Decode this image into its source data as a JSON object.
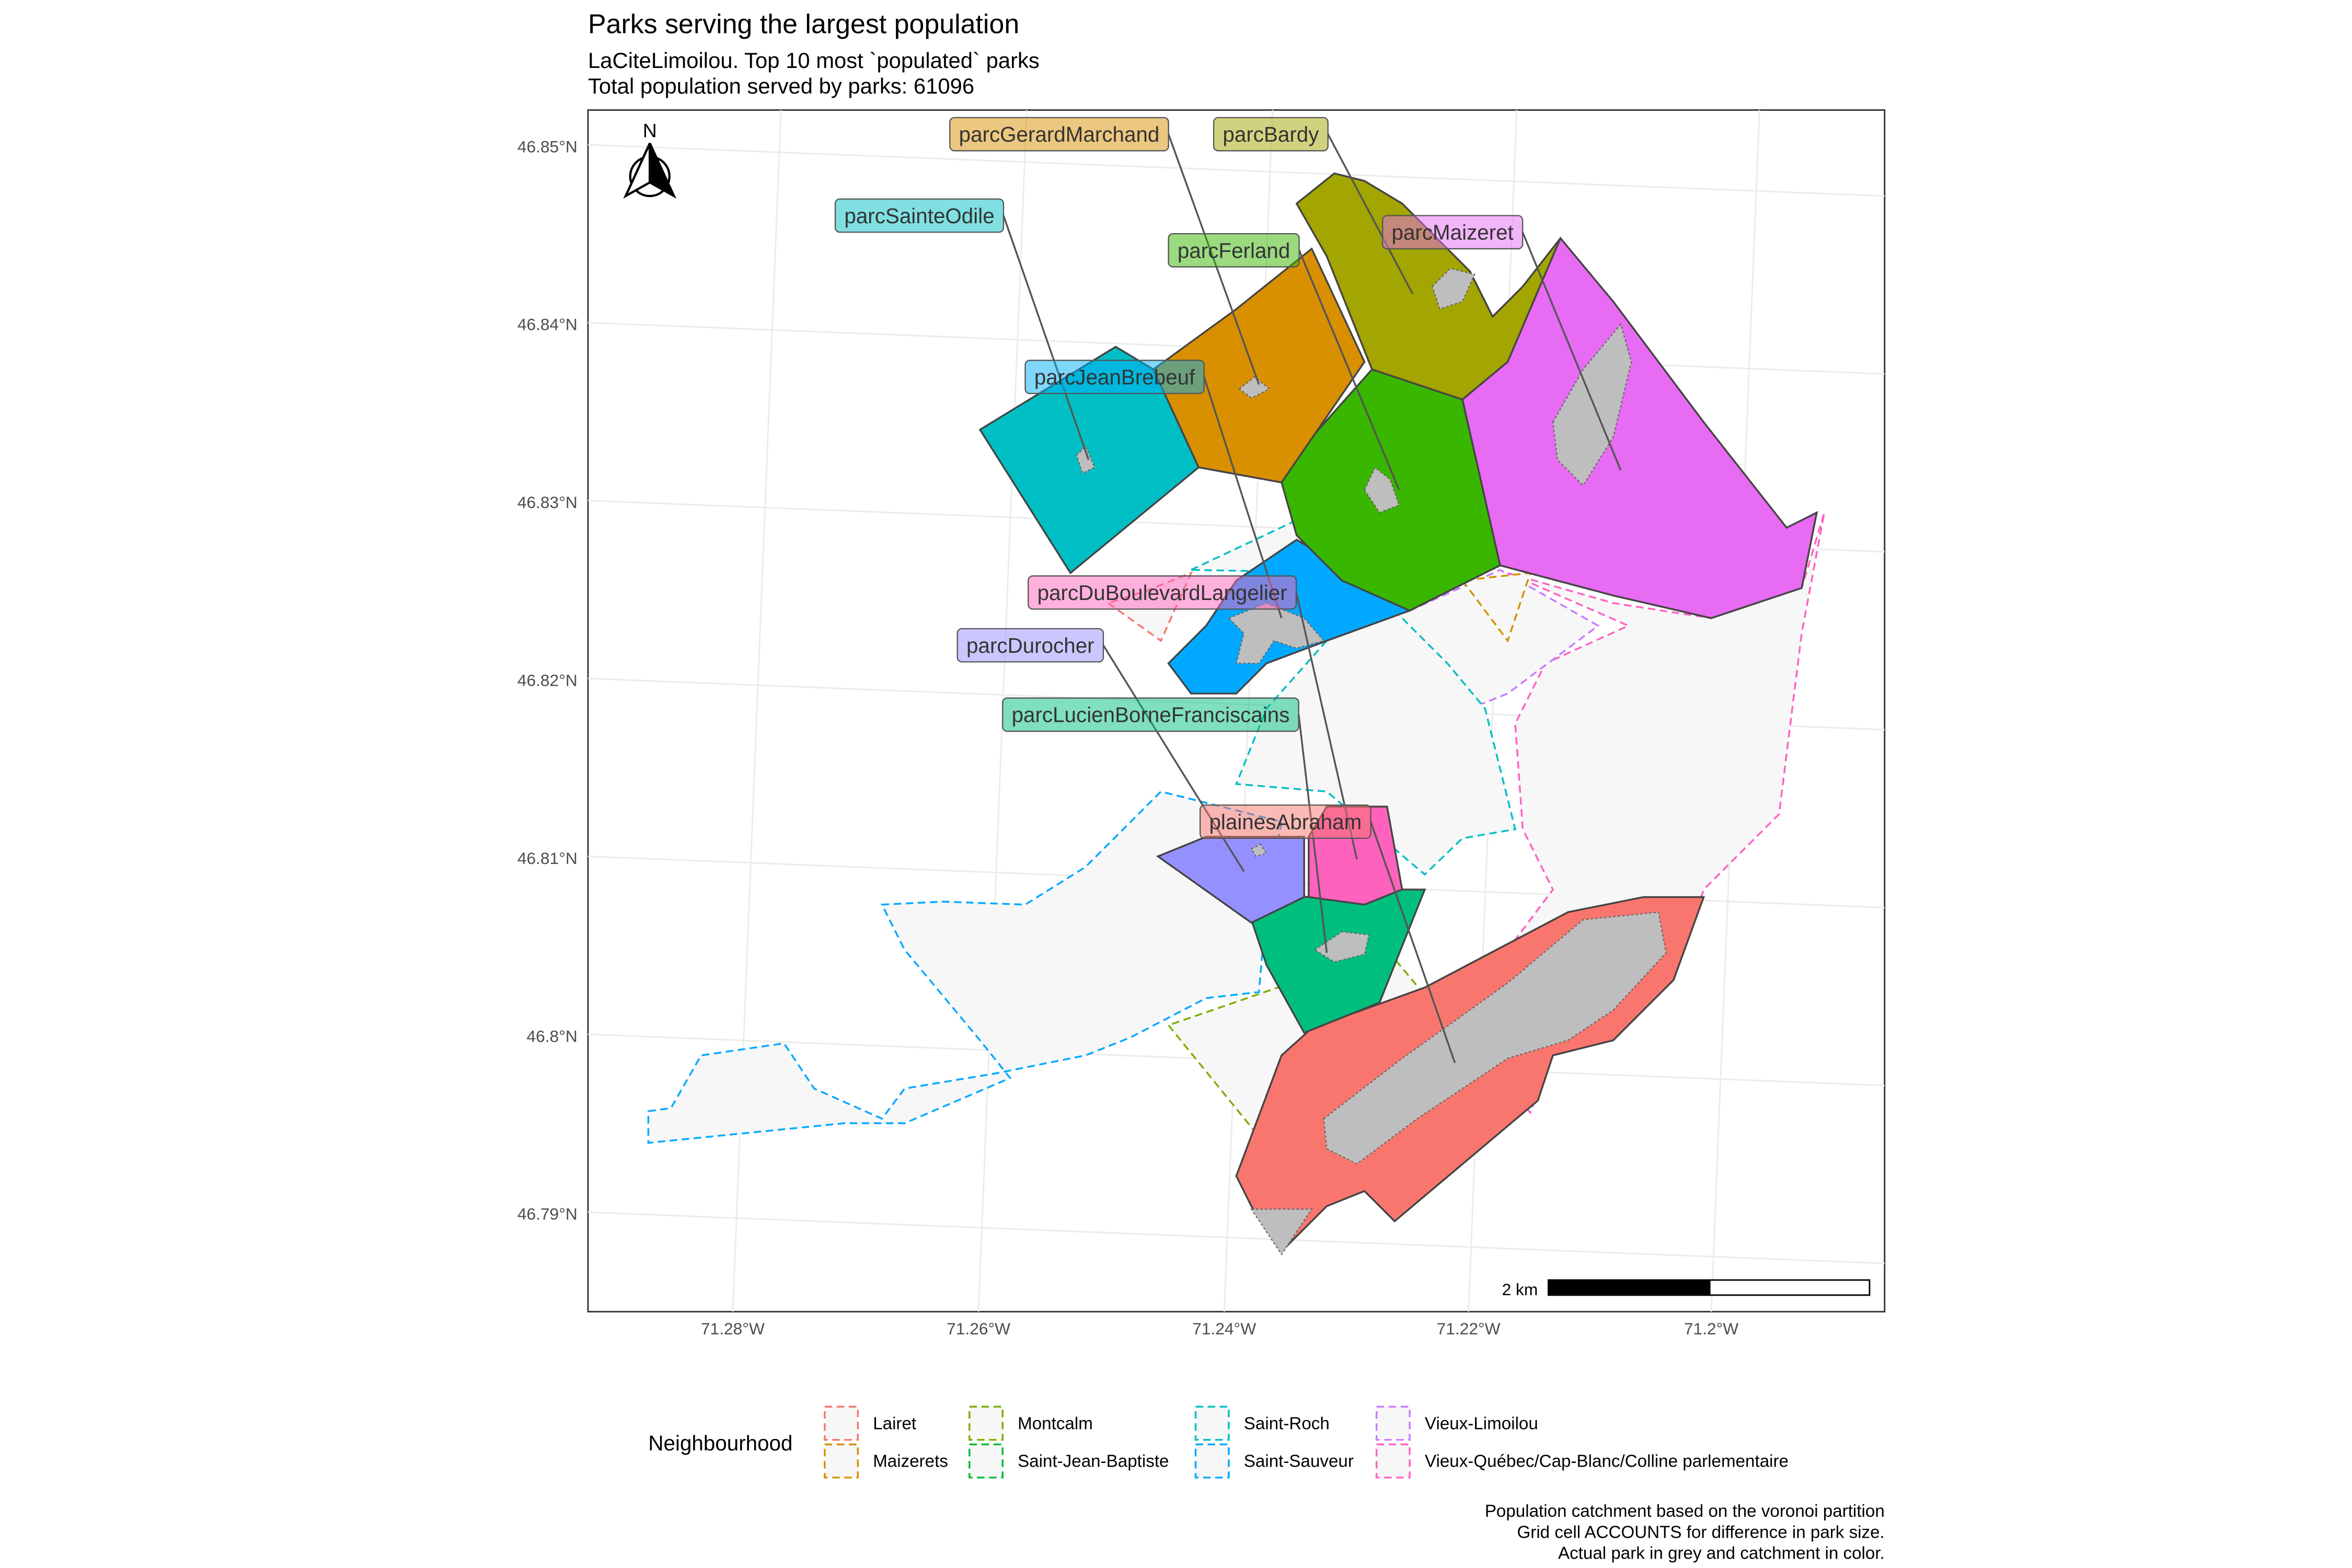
{
  "chart_data": {
    "type": "map",
    "title": "Parks serving the largest population",
    "subtitle_lines": [
      "LaCiteLimoilou. Top 10 most `populated` parks",
      "Total population served by parks: 61096"
    ],
    "y_ticks": [
      "46.85°N",
      "46.84°N",
      "46.83°N",
      "46.82°N",
      "46.81°N",
      "46.8°N",
      "46.79°N"
    ],
    "x_ticks": [
      "71.28°W",
      "71.26°W",
      "71.24°W",
      "71.22°W",
      "71.2°W"
    ],
    "north_arrow_label": "N",
    "scale_bar_label": "2 km",
    "parks": [
      {
        "name": "parcGerardMarchand",
        "color": "#D89000"
      },
      {
        "name": "parcBardy",
        "color": "#A3A500"
      },
      {
        "name": "parcSainteOdile",
        "color": "#00BFC4"
      },
      {
        "name": "parcMaizeret",
        "color": "#E76BF3"
      },
      {
        "name": "parcFerland",
        "color": "#39B600"
      },
      {
        "name": "parcJeanBrebeuf",
        "color": "#00B0F6"
      },
      {
        "name": "parcDuBoulevardLangelier",
        "color": "#FF62BC"
      },
      {
        "name": "parcDurocher",
        "color": "#9590FF"
      },
      {
        "name": "parcLucienBorneFranciscains",
        "color": "#00BF7D"
      },
      {
        "name": "plainesAbraham",
        "color": "#F8766D"
      }
    ],
    "legend": {
      "title": "Neighbourhood",
      "items": [
        {
          "label": "Lairet",
          "color": "#F8766D"
        },
        {
          "label": "Maizerets",
          "color": "#D39200"
        },
        {
          "label": "Montcalm",
          "color": "#7CAE00"
        },
        {
          "label": "Saint-Jean-Baptiste",
          "color": "#00BA38"
        },
        {
          "label": "Saint-Roch",
          "color": "#00BFC4"
        },
        {
          "label": "Saint-Sauveur",
          "color": "#00A9FF"
        },
        {
          "label": "Vieux-Limoilou",
          "color": "#C77CFF"
        },
        {
          "label": "Vieux-Québec/Cap-Blanc/Colline parlementaire",
          "color": "#FF61C3"
        }
      ]
    },
    "caption_lines": [
      "Population catchment based on the voronoi partition",
      "Grid cell ACCOUNTS for difference in park size.",
      "Actual park in grey and catchment in color."
    ]
  }
}
